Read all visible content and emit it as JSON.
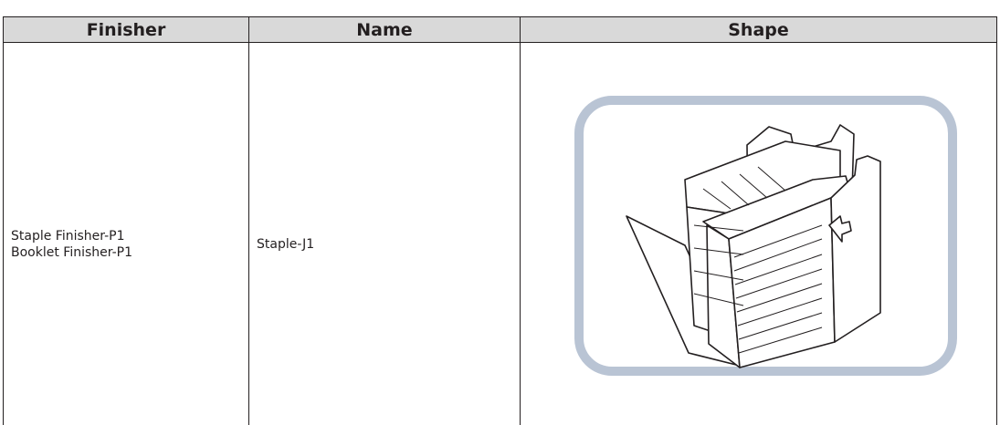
{
  "table": {
    "header": [
      "Finisher",
      "Name",
      "Shape"
    ],
    "rows": [
      [
        [
          "Staple Finisher-P1",
          "Booklet Finisher-P1"
        ],
        "Staple-J1"
      ]
    ]
  }
}
